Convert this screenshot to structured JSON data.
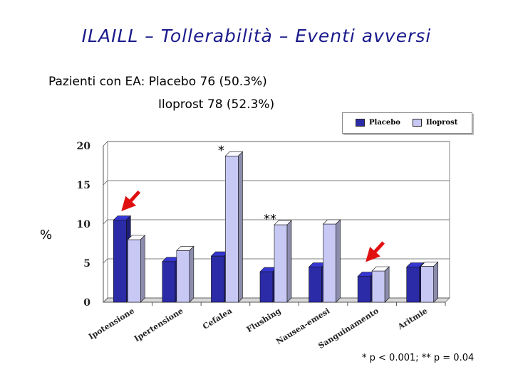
{
  "title": "ILAILL – Tollerabilità – Eventi avversi",
  "subtitle_line1": "Pazienti con EA: Placebo 76 (50.3%)",
  "subtitle_line2": "Iloprost  78 (52.3%)",
  "y_axis_symbol": "%",
  "footnote": "* p < 0.001; ** p = 0.04",
  "colors": {
    "placebo": "#2b2ba8",
    "iloprost": "#c8c8f5",
    "arrow": "#e01010"
  },
  "chart_data": {
    "type": "bar",
    "categories": [
      "Ipotensione",
      "Ipertensione",
      "Cefalea",
      "Flushing",
      "Nausea-emesi",
      "Sanguinamento",
      "Aritmie"
    ],
    "series": [
      {
        "name": "Placebo",
        "values": [
          10.5,
          5.2,
          5.9,
          3.9,
          4.5,
          3.3,
          4.5
        ]
      },
      {
        "name": "Iloprost",
        "values": [
          8.0,
          6.6,
          18.7,
          9.9,
          10.0,
          4.0,
          4.6
        ]
      }
    ],
    "ylim": [
      0,
      20
    ],
    "yticks": [
      0,
      5,
      10,
      15,
      20
    ],
    "legend_position": "top-right",
    "annotations": [
      {
        "text": "*",
        "category": "Cefalea"
      },
      {
        "text": "**",
        "category": "Flushing"
      }
    ],
    "arrows_at_categories": [
      "Ipotensione",
      "Sanguinamento"
    ]
  }
}
